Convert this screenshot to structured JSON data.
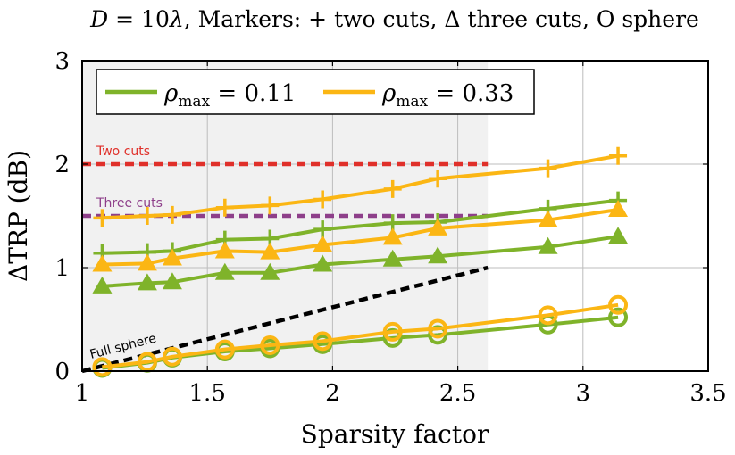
{
  "chart_data": {
    "type": "line",
    "title": "D = 10λ, Markers: + two cuts, Δ three cuts, O sphere",
    "title_parts": {
      "d": "D",
      "eq": " = 10",
      "lambda": "λ",
      "rest1": ", Markers: ",
      "plus": "+",
      "rest2": " two cuts, ",
      "delta": "Δ",
      "rest3": " three cuts, O sphere"
    },
    "xlabel": "Sparsity factor",
    "ylabel": "ΔTRP (dB)",
    "xlim": [
      1,
      3.5
    ],
    "ylim": [
      0,
      3
    ],
    "xticks": [
      1,
      1.5,
      2,
      2.5,
      3,
      3.5
    ],
    "xtick_labels": [
      "1",
      "1.5",
      "2",
      "2.5",
      "3",
      "3.5"
    ],
    "yticks": [
      0,
      1,
      2,
      3
    ],
    "ytick_labels": [
      "0",
      "1",
      "2",
      "3"
    ],
    "grid": true,
    "shaded_region": {
      "x": [
        1,
        2.62
      ],
      "color": "#f1f1f1"
    },
    "legend": {
      "placement": "top-left",
      "entries": [
        {
          "label": "ρmax = 0.11",
          "rho": "ρ",
          "sub": "max",
          "rest": " = 0.11",
          "color": "#7fb32a"
        },
        {
          "label": "ρmax = 0.33",
          "rho": "ρ",
          "sub": "max",
          "rest": " = 0.33",
          "color": "#fbb614"
        }
      ]
    },
    "x": [
      1.08,
      1.26,
      1.36,
      1.57,
      1.75,
      1.96,
      2.24,
      2.42,
      2.86,
      3.14
    ],
    "series": [
      {
        "marker": "plus",
        "color": "#7fb32a",
        "values": [
          1.14,
          1.15,
          1.16,
          1.27,
          1.28,
          1.37,
          1.43,
          1.44,
          1.57,
          1.65
        ]
      },
      {
        "marker": "triangle",
        "color": "#7fb32a",
        "values": [
          0.82,
          0.85,
          0.86,
          0.95,
          0.95,
          1.03,
          1.08,
          1.11,
          1.2,
          1.3
        ]
      },
      {
        "marker": "circle",
        "color": "#7fb32a",
        "values": [
          0.03,
          0.08,
          0.13,
          0.19,
          0.22,
          0.26,
          0.32,
          0.35,
          0.45,
          0.52
        ]
      },
      {
        "marker": "plus",
        "color": "#fbb614",
        "values": [
          1.48,
          1.5,
          1.51,
          1.58,
          1.6,
          1.66,
          1.76,
          1.86,
          1.96,
          2.08
        ]
      },
      {
        "marker": "triangle",
        "color": "#fbb614",
        "values": [
          1.03,
          1.04,
          1.09,
          1.16,
          1.15,
          1.22,
          1.29,
          1.38,
          1.46,
          1.56
        ]
      },
      {
        "marker": "circle",
        "color": "#fbb614",
        "values": [
          0.04,
          0.09,
          0.14,
          0.21,
          0.25,
          0.29,
          0.38,
          0.41,
          0.54,
          0.64
        ]
      }
    ],
    "reference_lines": [
      {
        "label": "Two cuts",
        "color": "#e0302a",
        "x": [
          1,
          2.62
        ],
        "y": [
          2,
          2
        ]
      },
      {
        "label": "Three cuts",
        "color": "#8e3f8a",
        "x": [
          1,
          2.62
        ],
        "y": [
          1.5,
          1.5
        ]
      },
      {
        "label": "Full sphere",
        "color": "#000000",
        "x": [
          1,
          2.62
        ],
        "y": [
          0,
          1
        ]
      }
    ]
  }
}
